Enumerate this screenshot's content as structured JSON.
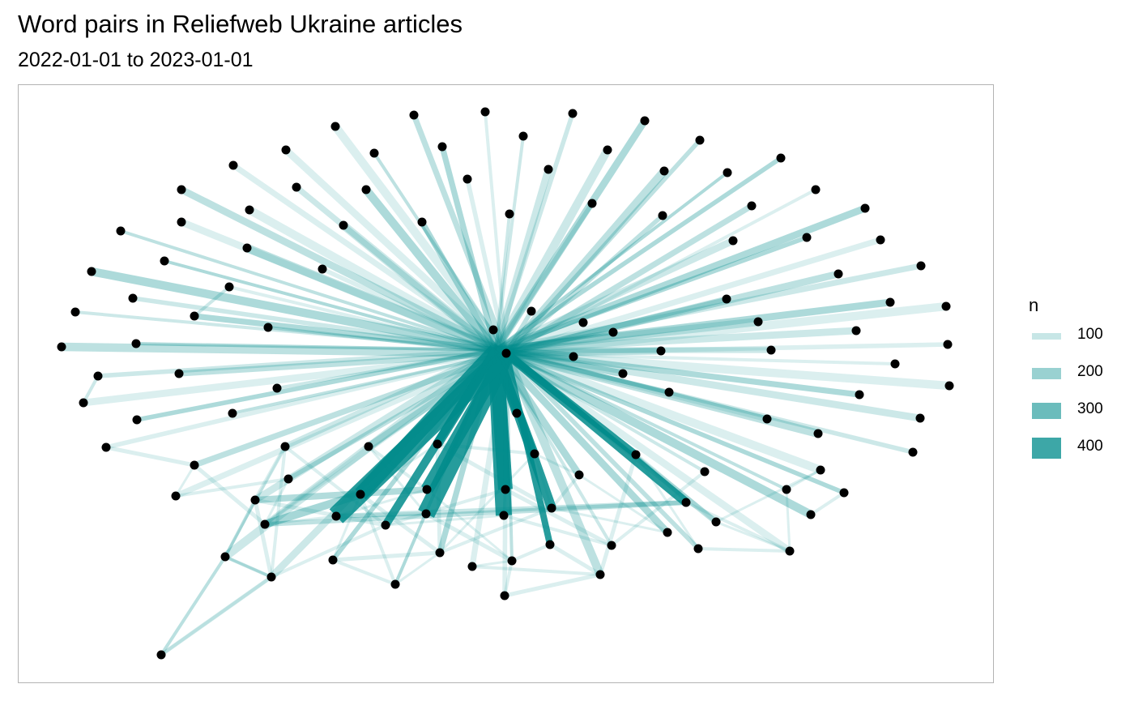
{
  "title": "Word pairs in Reliefweb Ukraine articles",
  "subtitle": "2022-01-01 to 2023-01-01",
  "edge_color": "#008b8b",
  "node_color": "#000000",
  "legend": {
    "title": "n",
    "items": [
      {
        "label": "100",
        "value": 100,
        "alpha": 0.2
      },
      {
        "label": "200",
        "value": 200,
        "alpha": 0.4
      },
      {
        "label": "300",
        "value": 300,
        "alpha": 0.6
      },
      {
        "label": "400",
        "value": 400,
        "alpha": 0.8
      }
    ]
  }
}
